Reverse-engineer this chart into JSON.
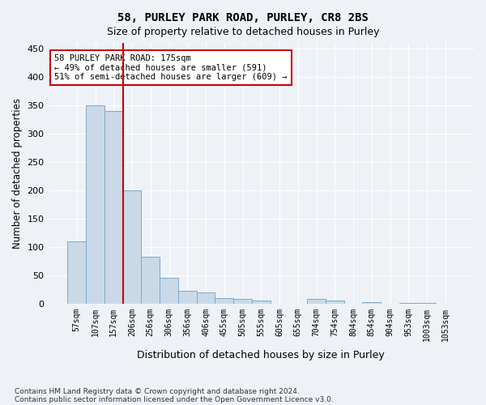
{
  "title_line1": "58, PURLEY PARK ROAD, PURLEY, CR8 2BS",
  "title_line2": "Size of property relative to detached houses in Purley",
  "xlabel": "Distribution of detached houses by size in Purley",
  "ylabel": "Number of detached properties",
  "bin_labels": [
    "57sqm",
    "107sqm",
    "157sqm",
    "206sqm",
    "256sqm",
    "306sqm",
    "356sqm",
    "406sqm",
    "455sqm",
    "505sqm",
    "555sqm",
    "605sqm",
    "655sqm",
    "704sqm",
    "754sqm",
    "804sqm",
    "854sqm",
    "904sqm",
    "953sqm",
    "1003sqm",
    "1053sqm"
  ],
  "bar_heights": [
    110,
    350,
    340,
    200,
    83,
    46,
    22,
    20,
    10,
    8,
    6,
    0,
    0,
    8,
    5,
    0,
    3,
    0,
    2,
    2,
    0
  ],
  "bar_color": "#c9d9e8",
  "bar_edge_color": "#7fa8c9",
  "property_line_x": 2.5,
  "annotation_text_line1": "58 PURLEY PARK ROAD: 175sqm",
  "annotation_text_line2": "← 49% of detached houses are smaller (591)",
  "annotation_text_line3": "51% of semi-detached houses are larger (609) →",
  "annotation_box_color": "#ffffff",
  "annotation_box_edge": "#cc0000",
  "line_color": "#cc0000",
  "ylim": [
    0,
    460
  ],
  "yticks": [
    0,
    50,
    100,
    150,
    200,
    250,
    300,
    350,
    400,
    450
  ],
  "footnote1": "Contains HM Land Registry data © Crown copyright and database right 2024.",
  "footnote2": "Contains public sector information licensed under the Open Government Licence v3.0.",
  "background_color": "#eef2f7",
  "plot_background": "#eef2f7"
}
